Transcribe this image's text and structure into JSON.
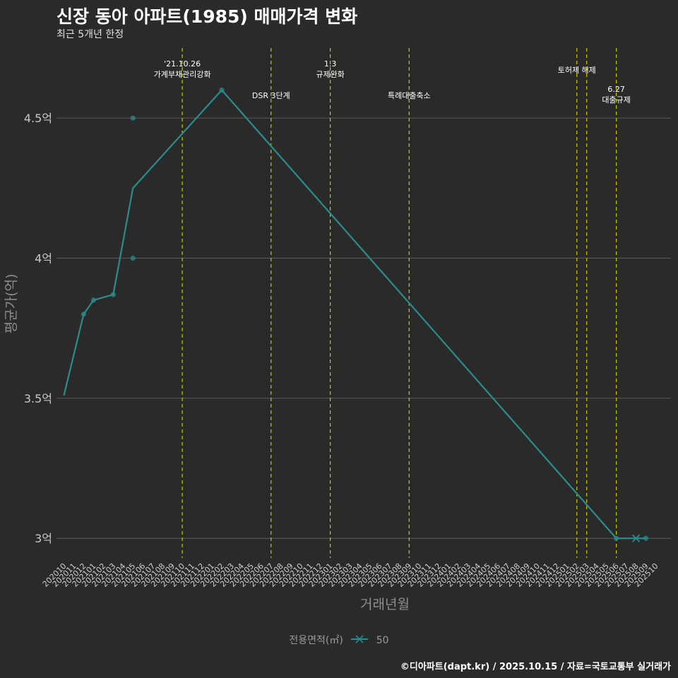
{
  "title": "신장 동아 아파트(1985) 매매가격 변화",
  "subtitle": "최근 5개년 한정",
  "caption": "©디아파트(dapt.kr) / 2025.10.15 / 자료=국토교통부 실거래가",
  "legend": {
    "title": "전용면적(㎡)",
    "item": "50"
  },
  "colors": {
    "background": "#2b2a2b",
    "line": "#2a8c8c",
    "event_line": "#c8c800",
    "grid": "#5a5a5a"
  },
  "chart_data": {
    "type": "line",
    "title": "신장 동아 아파트(1985) 매매가격 변화",
    "subtitle": "최근 5개년 한정",
    "xlabel": "거래년월",
    "ylabel": "평균가(억)",
    "ylim": [
      2.93,
      4.75
    ],
    "yticks": [
      {
        "value": 3.0,
        "label": "3억"
      },
      {
        "value": 3.5,
        "label": "3.5억"
      },
      {
        "value": 4.0,
        "label": "4억"
      },
      {
        "value": 4.5,
        "label": "4.5억"
      }
    ],
    "categories": [
      "202010",
      "202011",
      "202012",
      "202101",
      "202102",
      "202103",
      "202104",
      "202105",
      "202106",
      "202107",
      "202108",
      "202109",
      "202110",
      "202111",
      "202112",
      "202201",
      "202202",
      "202203",
      "202204",
      "202205",
      "202206",
      "202207",
      "202208",
      "202209",
      "202210",
      "202211",
      "202212",
      "202301",
      "202302",
      "202303",
      "202304",
      "202305",
      "202306",
      "202307",
      "202308",
      "202309",
      "202310",
      "202311",
      "202312",
      "202401",
      "202402",
      "202403",
      "202404",
      "202405",
      "202406",
      "202407",
      "202408",
      "202409",
      "202410",
      "202411",
      "202412",
      "202501",
      "202502",
      "202503",
      "202504",
      "202505",
      "202506",
      "202507",
      "202508",
      "202509",
      "202510"
    ],
    "series": [
      {
        "name": "50",
        "line": [
          {
            "x": "202010",
            "y": 3.51
          },
          {
            "x": "202012",
            "y": 3.8
          },
          {
            "x": "202101",
            "y": 3.85
          },
          {
            "x": "202103",
            "y": 3.87
          },
          {
            "x": "202105",
            "y": 4.25
          },
          {
            "x": "202202",
            "y": 4.6
          },
          {
            "x": "202506",
            "y": 3.0
          },
          {
            "x": "202508",
            "y": 3.0
          },
          {
            "x": "202509",
            "y": 3.0
          }
        ],
        "points": [
          {
            "x": "202012",
            "y": 3.8
          },
          {
            "x": "202101",
            "y": 3.85
          },
          {
            "x": "202103",
            "y": 3.87
          },
          {
            "x": "202105",
            "y": 4.5
          },
          {
            "x": "202105",
            "y": 4.0
          },
          {
            "x": "202202",
            "y": 4.6
          },
          {
            "x": "202506",
            "y": 3.0
          },
          {
            "x": "202509",
            "y": 3.0
          }
        ],
        "cross_marker": {
          "x": "202508",
          "y": 3.0
        }
      }
    ],
    "events": [
      {
        "x": "202110",
        "lines": [
          "'21.10.26",
          "가계부채관리강화"
        ],
        "level": 0
      },
      {
        "x": "202207",
        "lines": [
          "DSR 3단계"
        ],
        "level": 2
      },
      {
        "x": "202301",
        "lines": [
          "1.3",
          "규제완화"
        ],
        "level": 0
      },
      {
        "x": "202309",
        "lines": [
          "특례대출축소"
        ],
        "level": 2
      },
      {
        "x": "202502",
        "lines": [
          "토허제 해제"
        ],
        "level": 1
      },
      {
        "x": "202503",
        "lines": [],
        "level": 1
      },
      {
        "x": "202506",
        "lines": [
          "6.27",
          "대출규제"
        ],
        "level": 3
      }
    ]
  }
}
